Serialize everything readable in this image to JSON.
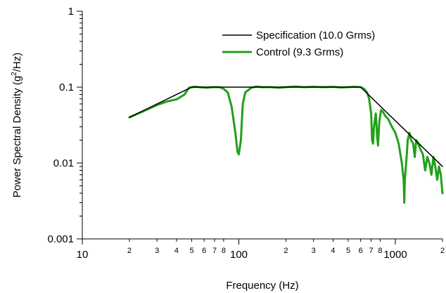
{
  "chart_data": {
    "type": "line",
    "xlabel": "Frequency (Hz)",
    "ylabel_parts": {
      "before": "Power Spectral Density  (g",
      "sup": "2",
      "after": "/Hz)"
    },
    "xscale": "log",
    "yscale": "log",
    "xlim": [
      10,
      2000
    ],
    "ylim": [
      0.001,
      1
    ],
    "x_major_ticks": [
      {
        "value": 10,
        "label": "10"
      },
      {
        "value": 100,
        "label": "100"
      },
      {
        "value": 1000,
        "label": "1000"
      }
    ],
    "x_minor_ticks": [
      {
        "value": 20,
        "label": "2"
      },
      {
        "value": 30,
        "label": "3"
      },
      {
        "value": 40,
        "label": "4"
      },
      {
        "value": 50,
        "label": "5"
      },
      {
        "value": 60,
        "label": "6"
      },
      {
        "value": 70,
        "label": "7"
      },
      {
        "value": 80,
        "label": "8"
      },
      {
        "value": 200,
        "label": "2"
      },
      {
        "value": 300,
        "label": "3"
      },
      {
        "value": 400,
        "label": "4"
      },
      {
        "value": 500,
        "label": "5"
      },
      {
        "value": 600,
        "label": "6"
      },
      {
        "value": 700,
        "label": "7"
      },
      {
        "value": 800,
        "label": "8"
      },
      {
        "value": 2000,
        "label": "2"
      }
    ],
    "y_major_ticks": [
      {
        "value": 0.001,
        "label": "0.001"
      },
      {
        "value": 0.01,
        "label": "0.01"
      },
      {
        "value": 0.1,
        "label": "0.1"
      },
      {
        "value": 1,
        "label": "1"
      }
    ],
    "legend_position": "top-right",
    "grid": false,
    "series": [
      {
        "name": "Specification (10.0 Grms)",
        "color": "#000000",
        "points": [
          [
            20,
            0.04
          ],
          [
            50,
            0.1
          ],
          [
            600,
            0.1
          ],
          [
            2000,
            0.009
          ]
        ]
      },
      {
        "name": "Control (9.3 Grms)",
        "color": "#22a01a",
        "points": [
          [
            20,
            0.04
          ],
          [
            25,
            0.049
          ],
          [
            30,
            0.058
          ],
          [
            35,
            0.065
          ],
          [
            40,
            0.069
          ],
          [
            45,
            0.08
          ],
          [
            48,
            0.098
          ],
          [
            52,
            0.101
          ],
          [
            56,
            0.1
          ],
          [
            62,
            0.098
          ],
          [
            68,
            0.1
          ],
          [
            75,
            0.1
          ],
          [
            80,
            0.095
          ],
          [
            85,
            0.085
          ],
          [
            90,
            0.055
          ],
          [
            95,
            0.025
          ],
          [
            98,
            0.014
          ],
          [
            100,
            0.013
          ],
          [
            103,
            0.02
          ],
          [
            106,
            0.06
          ],
          [
            110,
            0.085
          ],
          [
            120,
            0.098
          ],
          [
            130,
            0.102
          ],
          [
            140,
            0.1
          ],
          [
            160,
            0.1
          ],
          [
            180,
            0.098
          ],
          [
            200,
            0.1
          ],
          [
            230,
            0.102
          ],
          [
            260,
            0.1
          ],
          [
            300,
            0.101
          ],
          [
            350,
            0.1
          ],
          [
            400,
            0.101
          ],
          [
            450,
            0.099
          ],
          [
            500,
            0.1
          ],
          [
            550,
            0.101
          ],
          [
            600,
            0.1
          ],
          [
            630,
            0.095
          ],
          [
            660,
            0.085
          ],
          [
            680,
            0.07
          ],
          [
            700,
            0.045
          ],
          [
            710,
            0.02
          ],
          [
            720,
            0.018
          ],
          [
            730,
            0.03
          ],
          [
            750,
            0.045
          ],
          [
            765,
            0.022
          ],
          [
            775,
            0.017
          ],
          [
            790,
            0.035
          ],
          [
            810,
            0.05
          ],
          [
            830,
            0.048
          ],
          [
            860,
            0.042
          ],
          [
            900,
            0.038
          ],
          [
            950,
            0.03
          ],
          [
            1000,
            0.025
          ],
          [
            1050,
            0.018
          ],
          [
            1100,
            0.01
          ],
          [
            1130,
            0.006
          ],
          [
            1140,
            0.003
          ],
          [
            1150,
            0.006
          ],
          [
            1180,
            0.012
          ],
          [
            1200,
            0.02
          ],
          [
            1230,
            0.025
          ],
          [
            1260,
            0.02
          ],
          [
            1300,
            0.018
          ],
          [
            1330,
            0.012
          ],
          [
            1360,
            0.02
          ],
          [
            1400,
            0.018
          ],
          [
            1450,
            0.015
          ],
          [
            1500,
            0.013
          ],
          [
            1550,
            0.008
          ],
          [
            1600,
            0.012
          ],
          [
            1650,
            0.01
          ],
          [
            1700,
            0.007
          ],
          [
            1750,
            0.012
          ],
          [
            1800,
            0.009
          ],
          [
            1850,
            0.006
          ],
          [
            1900,
            0.009
          ],
          [
            1950,
            0.007
          ],
          [
            2000,
            0.004
          ]
        ]
      }
    ]
  }
}
